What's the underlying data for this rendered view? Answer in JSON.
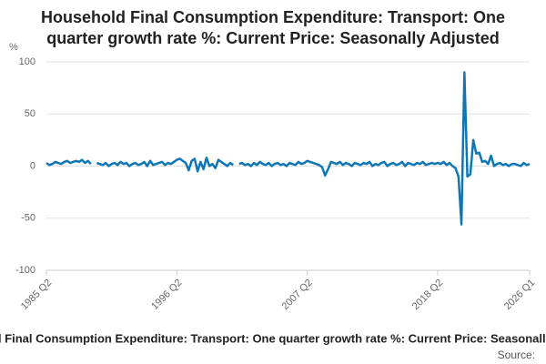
{
  "chart_data": {
    "type": "line",
    "title": "Household Final Consumption Expenditure: Transport: One quarter growth rate %: Current Price: Seasonally Adjusted",
    "y_label": "%",
    "source": "Source:",
    "categories": [
      "1985 Q2",
      null,
      null,
      null,
      null,
      null,
      null,
      null,
      null,
      null,
      null,
      null,
      null,
      null,
      null,
      null,
      null,
      null,
      null,
      null,
      null,
      null,
      null,
      null,
      null,
      null,
      null,
      null,
      null,
      null,
      null,
      null,
      null,
      null,
      null,
      null,
      null,
      null,
      null,
      null,
      null,
      null,
      null,
      null,
      "1996 Q2",
      null,
      null,
      null,
      null,
      null,
      null,
      null,
      null,
      null,
      null,
      null,
      null,
      null,
      null,
      null,
      null,
      null,
      null,
      null,
      null,
      null,
      null,
      null,
      null,
      null,
      null,
      null,
      null,
      null,
      null,
      null,
      null,
      null,
      null,
      null,
      null,
      null,
      null,
      null,
      null,
      null,
      null,
      null,
      "2007 Q2",
      null,
      null,
      null,
      null,
      null,
      null,
      null,
      null,
      null,
      null,
      null,
      null,
      null,
      null,
      null,
      null,
      null,
      null,
      null,
      null,
      null,
      null,
      null,
      null,
      null,
      null,
      null,
      null,
      null,
      null,
      null,
      null,
      null,
      null,
      null,
      null,
      null,
      null,
      null,
      null,
      null,
      null,
      null,
      "2018 Q2",
      null,
      null,
      null,
      null,
      null,
      null,
      null,
      null,
      null,
      null,
      null,
      null,
      null,
      null,
      null,
      null,
      null,
      null,
      null,
      null,
      null,
      null,
      null,
      null,
      null,
      null,
      null,
      null,
      null,
      null,
      "2026 Q1"
    ],
    "values": [
      3,
      1,
      2,
      4,
      3,
      2,
      4,
      5,
      3,
      4,
      5,
      4,
      6,
      3,
      5,
      2,
      null,
      3,
      2,
      1,
      3,
      0,
      2,
      3,
      1,
      4,
      2,
      3,
      0,
      2,
      3,
      1,
      2,
      4,
      0,
      5,
      1,
      2,
      3,
      4,
      1,
      3,
      2,
      4,
      6,
      7,
      5,
      3,
      -4,
      5,
      7,
      -5,
      4,
      -3,
      8,
      0,
      2,
      -2,
      6,
      4,
      2,
      0,
      3,
      1,
      null,
      2,
      3,
      1,
      2,
      0,
      3,
      1,
      4,
      2,
      1,
      3,
      0,
      2,
      3,
      1,
      2,
      0,
      3,
      2,
      1,
      4,
      2,
      3,
      5,
      4,
      3,
      2,
      1,
      -1,
      -9,
      -3,
      4,
      3,
      2,
      4,
      1,
      3,
      2,
      0,
      3,
      2,
      1,
      3,
      2,
      4,
      0,
      2,
      1,
      3,
      4,
      0,
      2,
      3,
      1,
      2,
      4,
      0,
      3,
      2,
      1,
      3,
      2,
      4,
      1,
      2,
      3,
      2,
      3,
      2,
      4,
      1,
      3,
      0,
      -2,
      -10,
      -56,
      90,
      -10,
      -8,
      25,
      12,
      13,
      4,
      5,
      2,
      10,
      0,
      2,
      3,
      1,
      2,
      0,
      2,
      2,
      1,
      0,
      3,
      1,
      2
    ],
    "color": "#0f76b5",
    "ylim": [
      -100,
      100
    ],
    "yticks": [
      -100,
      -50,
      0,
      50,
      100
    ],
    "grid": true
  }
}
